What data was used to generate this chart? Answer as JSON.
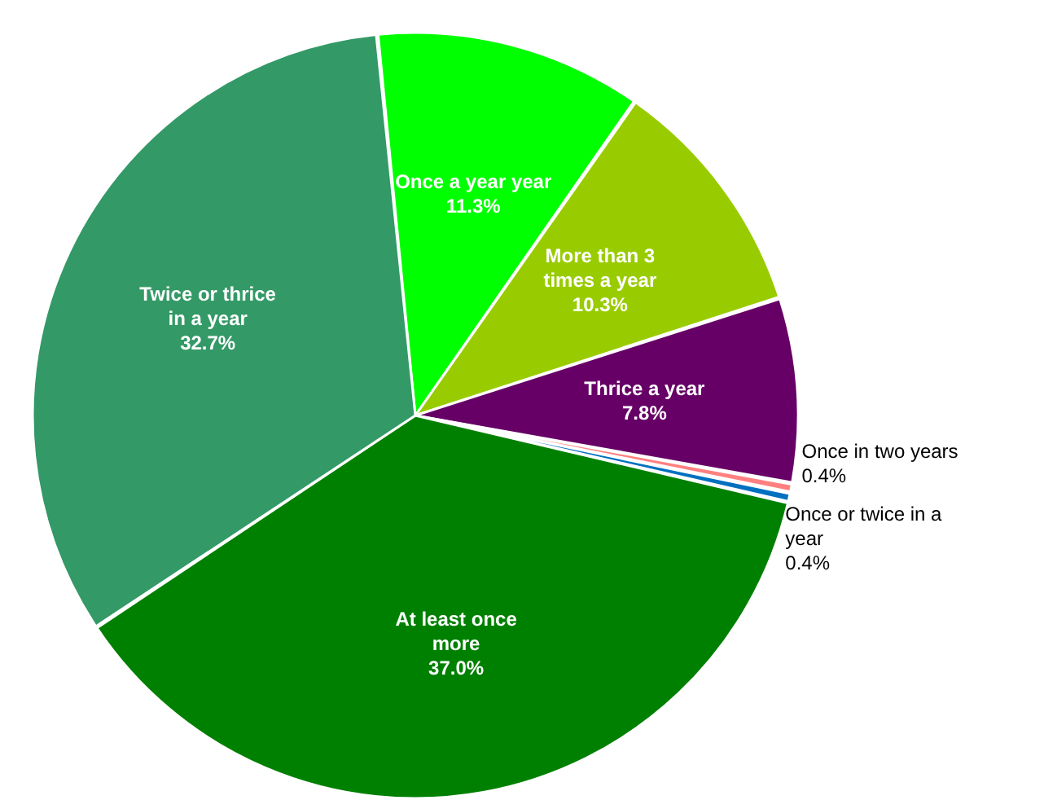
{
  "chart_data": {
    "type": "pie",
    "categories": [
      "Once a year year",
      "More than 3 times a year",
      "Thrice a year",
      "Once in two years",
      "Once or twice in a year",
      "At least once more",
      "Twice or thrice in a year"
    ],
    "values": [
      11.3,
      10.3,
      7.8,
      0.4,
      0.4,
      37.0,
      32.7
    ],
    "value_labels": [
      "11.3%",
      "10.3%",
      "7.8%",
      "0.4%",
      "0.4%",
      "37.0%",
      "32.7%"
    ],
    "colors": [
      "#00ff00",
      "#99cc00",
      "#660066",
      "#ff8080",
      "#0070c0",
      "#008000",
      "#339966"
    ]
  }
}
